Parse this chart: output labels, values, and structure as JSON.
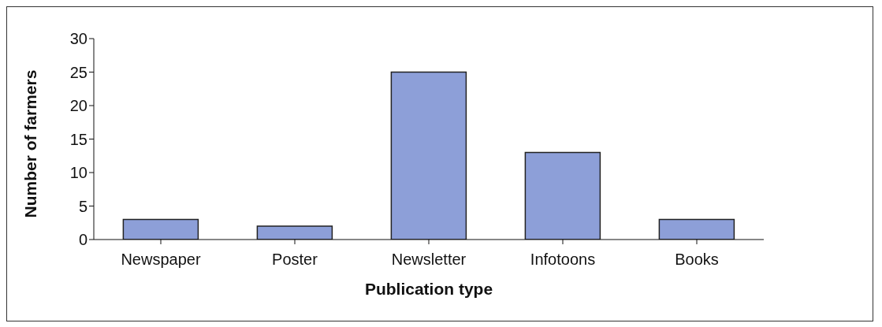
{
  "chart_data": {
    "type": "bar",
    "xlabel": "Publication type",
    "ylabel": "Number of farmers",
    "categories": [
      "Newspaper",
      "Poster",
      "Newsletter",
      "Infotoons",
      "Books"
    ],
    "values": [
      3,
      2,
      25,
      13,
      3
    ],
    "color": "#8d9fd8",
    "ylim": [
      0,
      30
    ],
    "yticks": [
      0,
      5,
      10,
      15,
      20,
      25,
      30
    ],
    "grid": false,
    "legend": false
  }
}
